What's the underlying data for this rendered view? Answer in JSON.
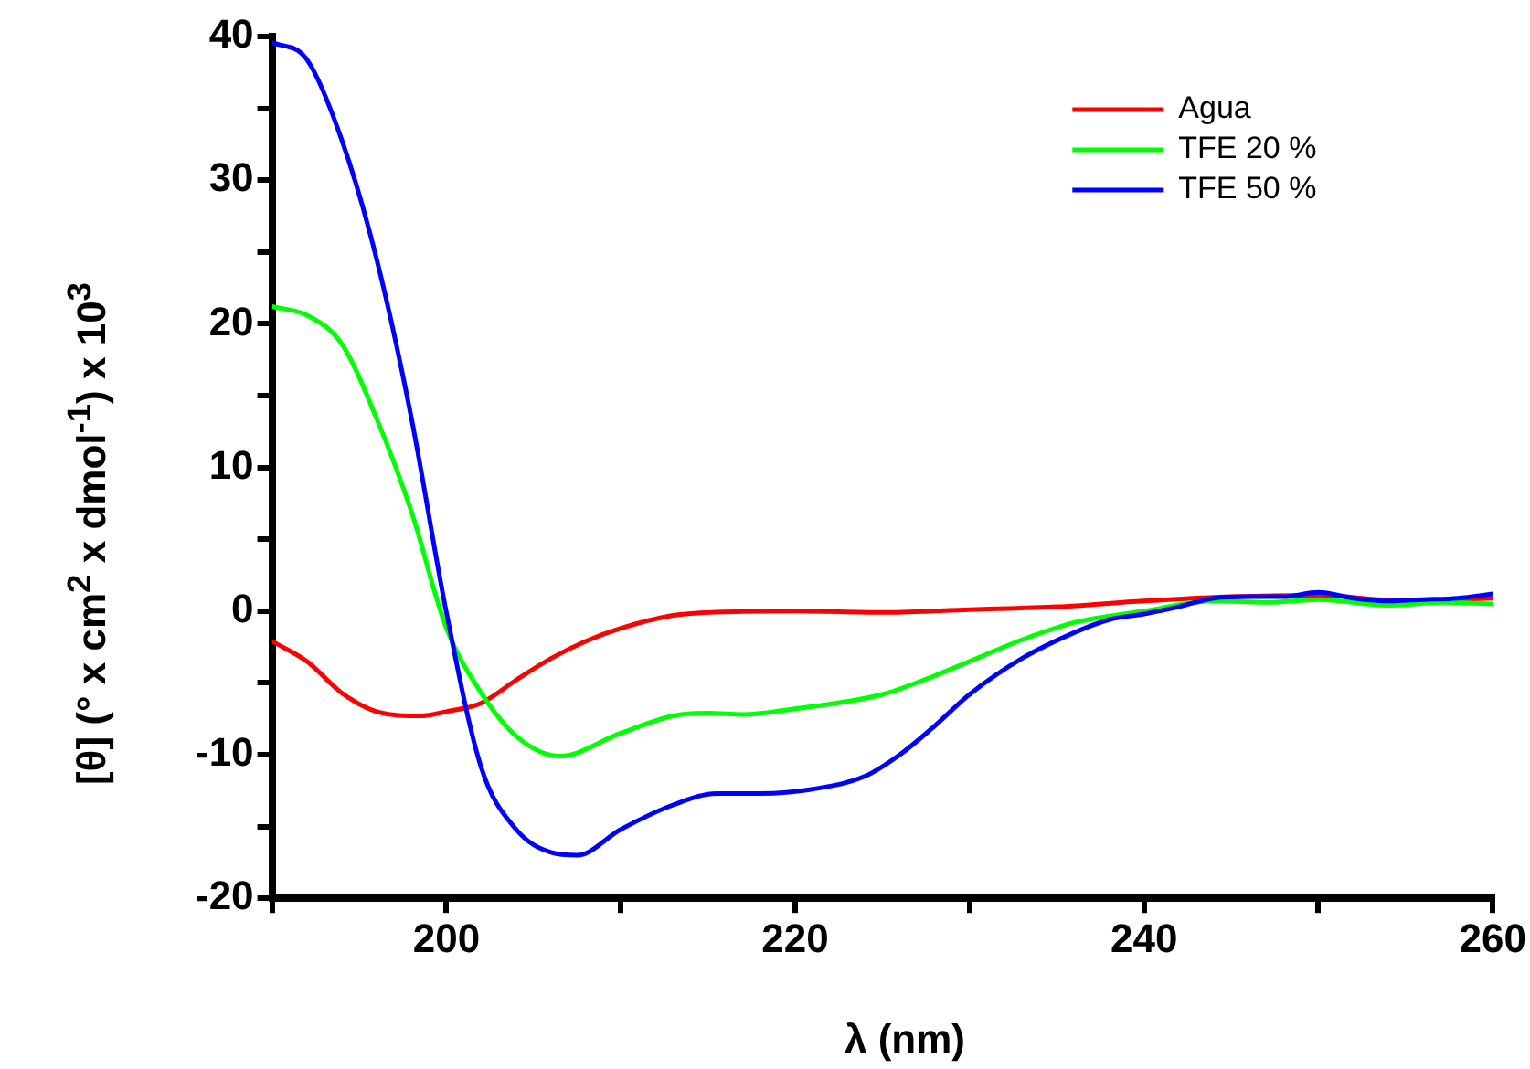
{
  "chart_data": {
    "type": "line",
    "xlabel": "λ (nm)",
    "ylabel": "[θ] (° x cm$^{2}$ x dmol$^{-1}$) x 10$^{3}$",
    "xlim": [
      190,
      260
    ],
    "xticks": [
      {
        "value": 190,
        "label": null
      },
      {
        "value": 200,
        "label": "200"
      },
      {
        "value": 210,
        "label": null
      },
      {
        "value": 220,
        "label": "220"
      },
      {
        "value": 230,
        "label": null
      },
      {
        "value": 240,
        "label": "240"
      },
      {
        "value": 250,
        "label": null
      },
      {
        "value": 260,
        "label": "260"
      }
    ],
    "ylim": [
      -20,
      40
    ],
    "yticks": [
      -20,
      {
        "value": -15,
        "label": null
      },
      -10,
      {
        "value": -5,
        "label": null
      },
      0,
      {
        "value": 5,
        "label": null
      },
      10,
      {
        "value": 15,
        "label": null
      },
      20,
      {
        "value": 25,
        "label": null
      },
      30,
      {
        "value": 35,
        "label": null
      },
      40
    ],
    "grid": false,
    "legend": "top right",
    "marker": "none",
    "line_style": "solid",
    "series": [
      {
        "name": "Agua",
        "color": "#ff0000",
        "x": [
          190,
          192,
          194,
          196,
          198.5,
          200,
          202,
          204,
          206,
          208,
          210,
          213,
          215,
          220,
          225,
          230,
          235,
          240,
          245,
          250,
          255,
          260
        ],
        "values": [
          -2.1,
          -3.5,
          -5.7,
          -7.0,
          -7.3,
          -7.0,
          -6.4,
          -4.8,
          -3.3,
          -2.1,
          -1.2,
          -0.3,
          -0.1,
          0,
          -0.1,
          0.1,
          0.3,
          0.7,
          1.0,
          1.1,
          0.7,
          0.9
        ]
      },
      {
        "name": "TFE 20 %",
        "color": "#00ff00",
        "x": [
          190,
          192,
          194,
          196,
          198,
          200,
          202,
          204,
          206.5,
          210,
          213,
          215,
          217,
          220,
          225,
          228,
          230,
          233,
          236,
          240,
          244,
          247,
          250,
          254,
          257,
          260
        ],
        "values": [
          21.2,
          20.6,
          18.6,
          13.4,
          6.9,
          -1.2,
          -5.7,
          -8.7,
          -10.1,
          -8.5,
          -7.3,
          -7.1,
          -7.2,
          -6.8,
          -5.8,
          -4.5,
          -3.5,
          -2.0,
          -0.8,
          0,
          0.7,
          0.6,
          0.8,
          0.4,
          0.6,
          0.5
        ]
      },
      {
        "name": "TFE 50 %",
        "color": "#0000ff",
        "x": [
          190,
          192,
          194,
          196,
          198,
          200,
          202,
          204,
          206,
          207.5,
          210,
          213,
          215.5,
          218,
          221,
          224,
          226,
          228,
          230,
          233,
          236,
          238,
          240,
          242,
          244,
          246,
          248,
          250,
          252,
          254,
          256,
          258,
          260
        ],
        "values": [
          39.6,
          38.4,
          32.8,
          24.5,
          13.4,
          -0.1,
          -10.9,
          -15.2,
          -16.8,
          -17.0,
          -15.2,
          -13.5,
          -12.7,
          -12.7,
          -12.4,
          -11.5,
          -10.0,
          -8.0,
          -5.8,
          -3.3,
          -1.5,
          -0.6,
          -0.2,
          0.3,
          0.9,
          1.0,
          1.0,
          1.3,
          0.9,
          0.7,
          0.8,
          0.9,
          1.2
        ]
      }
    ]
  }
}
